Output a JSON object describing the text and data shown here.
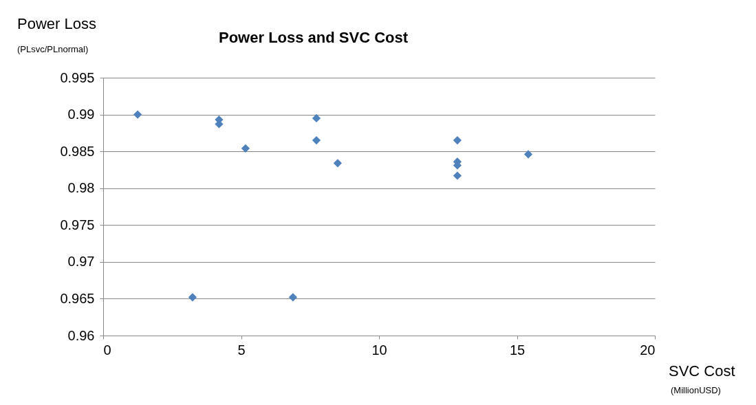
{
  "chart_data": {
    "type": "scatter",
    "title": "Power Loss and SVC Cost",
    "xlabel": "SVC Cost",
    "ylabel": "Power Loss",
    "annotations": [
      "(PLsvc/PLnormal)",
      "(MillionUSD)"
    ],
    "x": [
      1.25,
      4.2,
      4.2,
      5.16,
      7.73,
      7.73,
      8.5,
      12.84,
      12.84,
      12.84,
      12.84,
      15.41,
      3.24,
      6.88
    ],
    "series": [
      {
        "color": "#4f81bd",
        "values": [
          0.99,
          0.9893,
          0.9887,
          0.9854,
          0.9895,
          0.9865,
          0.9834,
          0.9865,
          0.9836,
          0.9831,
          0.9817,
          0.9846,
          0.9652,
          0.9652
        ]
      }
    ],
    "xlim": [
      0,
      20
    ],
    "xticks": [
      0,
      5,
      10,
      15,
      20
    ],
    "ylim": [
      0.96,
      0.995
    ],
    "yticks": [
      0.96,
      0.965,
      0.97,
      0.975,
      0.98,
      0.985,
      0.99,
      0.995
    ],
    "grid": "y",
    "marker": "diamond"
  }
}
